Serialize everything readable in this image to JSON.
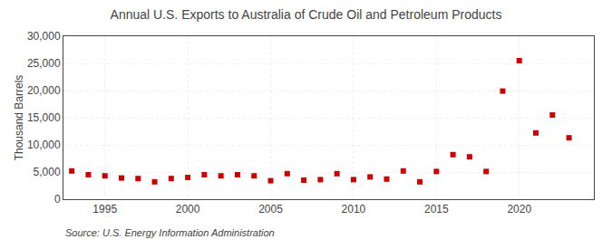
{
  "chart_data": {
    "type": "scatter",
    "title": "Annual U.S. Exports to Australia of Crude Oil and Petroleum Products",
    "ylabel": "Thousand Barrels",
    "annotations": [
      "Source: U.S. Energy Information Administration"
    ],
    "x": [
      1993,
      1994,
      1995,
      1996,
      1997,
      1998,
      1999,
      2000,
      2001,
      2002,
      2003,
      2004,
      2005,
      2006,
      2007,
      2008,
      2009,
      2010,
      2011,
      2012,
      2013,
      2014,
      2015,
      2016,
      2017,
      2018,
      2019,
      2020,
      2021,
      2022,
      2023
    ],
    "values": [
      5200,
      4500,
      4300,
      3900,
      3800,
      3200,
      3800,
      4000,
      4500,
      4300,
      4500,
      4300,
      3400,
      4700,
      3500,
      3600,
      4700,
      3600,
      4100,
      3700,
      5200,
      3200,
      5100,
      8200,
      7800,
      5100,
      19900,
      25500,
      12200,
      15500,
      11300
    ],
    "color": "#cc0000",
    "marker": "square",
    "xlim": [
      1992.5,
      2024.5
    ],
    "xticks": [
      1995,
      2000,
      2005,
      2010,
      2015,
      2020
    ],
    "ylim": [
      0,
      30000
    ],
    "yticks": [
      0,
      {
        "value": 5000,
        "label": "5,000"
      },
      {
        "value": 10000,
        "label": "10,000"
      },
      {
        "value": 15000,
        "label": "15,000"
      },
      {
        "value": 20000,
        "label": "20,000"
      },
      {
        "value": 25000,
        "label": "25,000"
      },
      {
        "value": 30000,
        "label": "30,000"
      }
    ],
    "grid": true
  }
}
